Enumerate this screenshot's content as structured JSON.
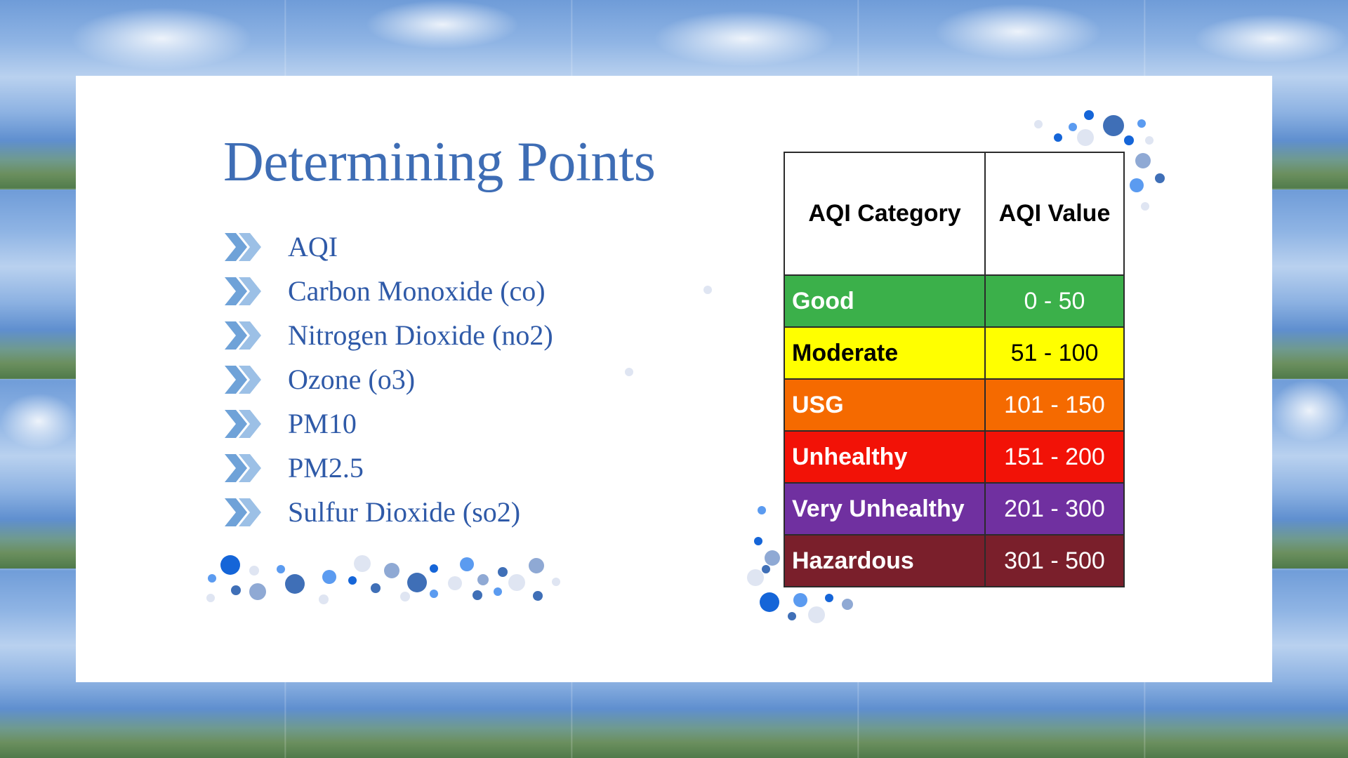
{
  "slide": {
    "title": "Determining Points",
    "bullets": [
      "AQI",
      "Carbon Monoxide (co)",
      "Nitrogen Dioxide (no2)",
      "Ozone (o3)",
      "PM10",
      "PM2.5",
      "Sulfur Dioxide (so2)"
    ],
    "bullet_icon": "double-chevron-icon"
  },
  "aqi_table": {
    "headers": [
      "AQI Category",
      "AQI Value"
    ],
    "rows": [
      {
        "category": "Good",
        "value": "0 - 50",
        "bg": "#3bb04a",
        "fg": "#ffffff"
      },
      {
        "category": "Moderate",
        "value": "51 - 100",
        "bg": "#ffff00",
        "fg": "#000000"
      },
      {
        "category": "USG",
        "value": "101 - 150",
        "bg": "#f56a00",
        "fg": "#ffffff"
      },
      {
        "category": "Unhealthy",
        "value": "151 - 200",
        "bg": "#f21207",
        "fg": "#ffffff"
      },
      {
        "category": "Very Unhealthy",
        "value": "201 - 300",
        "bg": "#7030a0",
        "fg": "#ffffff"
      },
      {
        "category": "Hazardous",
        "value": "301 - 500",
        "bg": "#7a1f2b",
        "fg": "#ffffff"
      }
    ]
  },
  "colors": {
    "title": "#3e6db5",
    "bullet_text": "#2f5aa8",
    "dot_palette": [
      "#1565d8",
      "#3f6fb7",
      "#5b9bf0",
      "#8fa9d4",
      "#dfe5f2",
      "#4a7fd0"
    ]
  }
}
